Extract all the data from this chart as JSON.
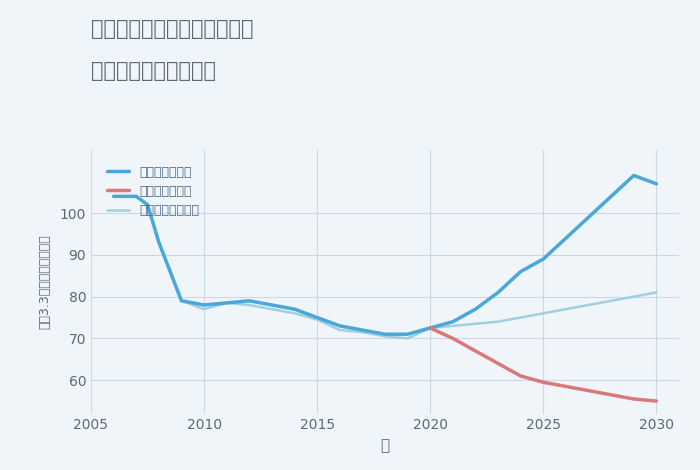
{
  "title_line1": "三重県津市安濃町田端上野の",
  "title_line2": "中古戸建ての価格推移",
  "xlabel": "年",
  "ylabel": "坪（3.3㎡）単価（万円）",
  "ylim": [
    52,
    115
  ],
  "xlim": [
    2005,
    2031
  ],
  "yticks": [
    60,
    70,
    80,
    90,
    100
  ],
  "xticks": [
    2005,
    2010,
    2015,
    2020,
    2025,
    2030
  ],
  "good_scenario": {
    "x": [
      2006,
      2007,
      2007.5,
      2008,
      2009,
      2010,
      2011,
      2012,
      2013,
      2014,
      2015,
      2016,
      2017,
      2018,
      2019,
      2020,
      2021,
      2022,
      2023,
      2024,
      2025,
      2026,
      2027,
      2028,
      2029,
      2030
    ],
    "y": [
      104,
      104,
      102,
      93,
      79,
      78,
      78.5,
      79,
      78,
      77,
      75,
      73,
      72,
      71,
      71,
      72.5,
      74,
      77,
      81,
      86,
      89,
      94,
      99,
      104,
      109,
      107
    ],
    "color": "#4aa8d8",
    "linewidth": 2.5,
    "label": "グッドシナリオ"
  },
  "bad_scenario": {
    "x": [
      2020,
      2021,
      2022,
      2023,
      2024,
      2025,
      2026,
      2027,
      2028,
      2029,
      2030
    ],
    "y": [
      72.5,
      70.0,
      67,
      64,
      61,
      59.5,
      58.5,
      57.5,
      56.5,
      55.5,
      55
    ],
    "color": "#d9797a",
    "linewidth": 2.5,
    "label": "バッドシナリオ"
  },
  "normal_scenario": {
    "x": [
      2006,
      2007,
      2007.5,
      2008,
      2009,
      2010,
      2011,
      2012,
      2013,
      2014,
      2015,
      2016,
      2017,
      2018,
      2019,
      2020,
      2021,
      2022,
      2023,
      2024,
      2025,
      2026,
      2027,
      2028,
      2029,
      2030
    ],
    "y": [
      104,
      104,
      102,
      93,
      79,
      77,
      78.5,
      78,
      77,
      76,
      74.5,
      72,
      71.5,
      70.5,
      70,
      72.5,
      73,
      73.5,
      74,
      75,
      76,
      77,
      78,
      79,
      80,
      81
    ],
    "color": "#a0cfe0",
    "linewidth": 1.8,
    "label": "ノーマルシナリオ"
  },
  "background_color": "#f0f5fa",
  "grid_color": "#ccd8e5",
  "title_color": "#5a6a7a",
  "tick_color": "#5a6a7a",
  "axis_label_color": "#5a6a7a",
  "legend_text_color": "#4a6a8a"
}
